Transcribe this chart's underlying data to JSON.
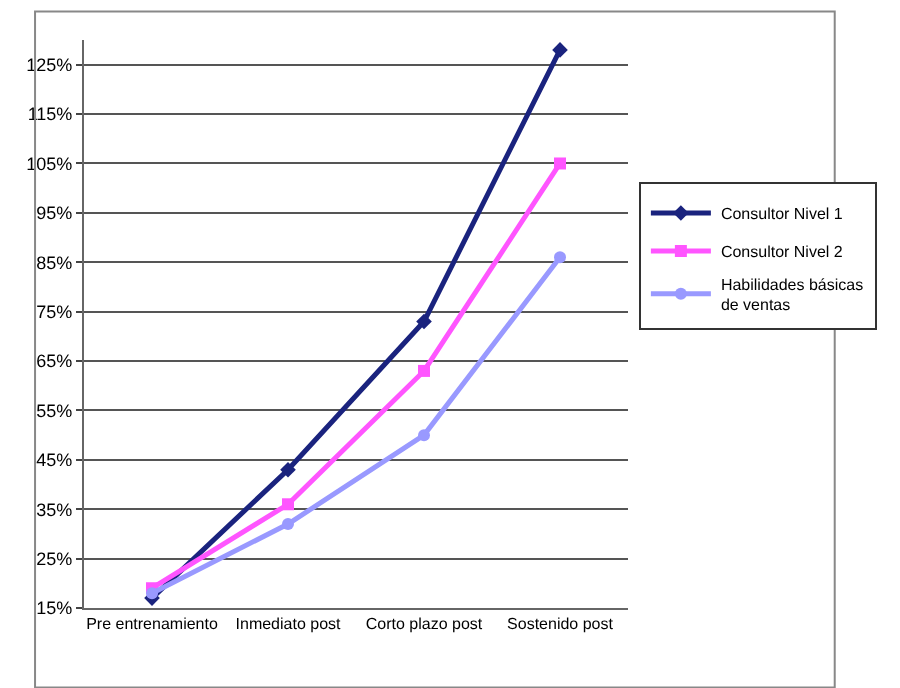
{
  "chart_data": {
    "type": "line",
    "categories": [
      "Pre entrenamiento",
      "Inmediato post",
      "Corto plazo post",
      "Sostenido post"
    ],
    "series": [
      {
        "name": "Consultor Nivel 1",
        "color": "#1a237e",
        "marker": "diamond",
        "values": [
          17,
          43,
          73,
          128
        ]
      },
      {
        "name": "Consultor Nivel 2",
        "color": "#ff55ff",
        "marker": "square",
        "values": [
          19,
          36,
          63,
          105
        ]
      },
      {
        "name": "Habilidades básicas de ventas",
        "color": "#9999ff",
        "marker": "circle",
        "values": [
          18,
          32,
          50,
          86
        ]
      }
    ],
    "ylim": [
      15,
      130
    ],
    "yticks": [
      {
        "value": 15,
        "label": "15%"
      },
      {
        "value": 25,
        "label": "25%"
      },
      {
        "value": 35,
        "label": "35%"
      },
      {
        "value": 45,
        "label": "45%"
      },
      {
        "value": 55,
        "label": "55%"
      },
      {
        "value": 65,
        "label": "65%"
      },
      {
        "value": 75,
        "label": "75%"
      },
      {
        "value": 85,
        "label": "85%"
      },
      {
        "value": 95,
        "label": "95%"
      },
      {
        "value": 105,
        "label": "105%"
      },
      {
        "value": 115,
        "label": "115%"
      },
      {
        "value": 125,
        "label": "125%"
      }
    ],
    "grid": "y",
    "legend": "right",
    "line_style": "solid"
  }
}
